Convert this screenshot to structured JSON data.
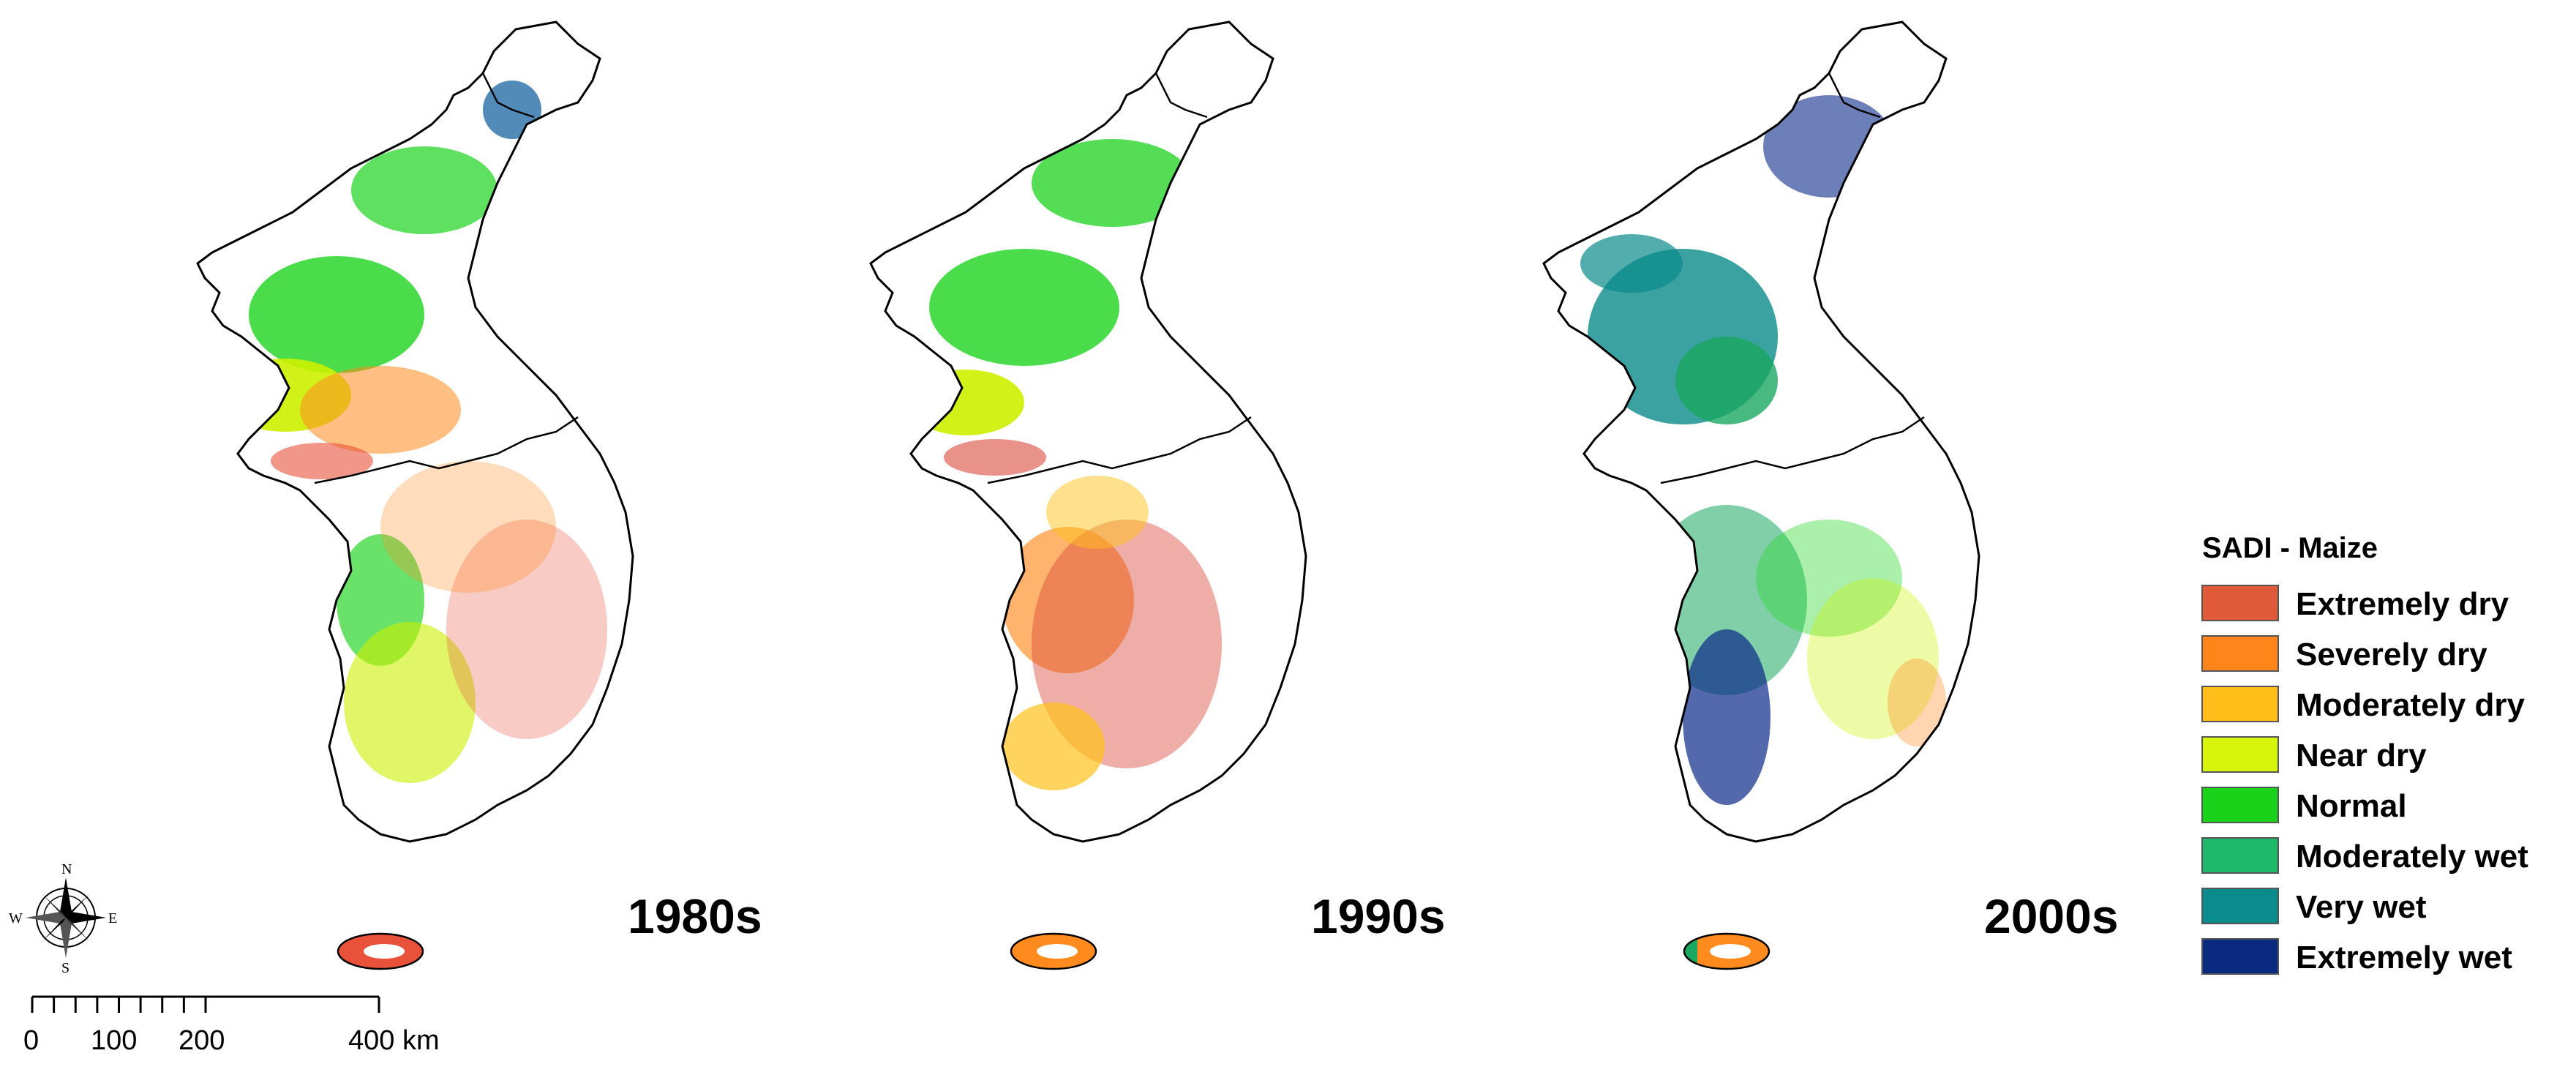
{
  "maps": [
    {
      "decade": "1980s",
      "dominant": [
        "#e8523a",
        "#ff8a1e",
        "#ccf000",
        "#2bd62b"
      ]
    },
    {
      "decade": "1990s",
      "dominant": [
        "#d94a3a",
        "#ff8a1e",
        "#ffc21a",
        "#2bd62b"
      ]
    },
    {
      "decade": "2000s",
      "dominant": [
        "#0a8a8a",
        "#1aa860",
        "#0a2a88",
        "#2bd62b"
      ]
    }
  ],
  "legend": {
    "title": "SADI - Maize",
    "items": [
      {
        "label": "Extremely dry",
        "color": "#e05a3a"
      },
      {
        "label": "Severely dry",
        "color": "#ff8419"
      },
      {
        "label": "Moderately dry",
        "color": "#ffbe1a"
      },
      {
        "label": "Near dry",
        "color": "#d6f50a"
      },
      {
        "label": "Normal",
        "color": "#19d219"
      },
      {
        "label": "Moderately wet",
        "color": "#1db86a"
      },
      {
        "label": "Very wet",
        "color": "#0b8b8b"
      },
      {
        "label": "Extremely wet",
        "color": "#0a2a80"
      }
    ]
  },
  "compass": {
    "n": "N",
    "s": "S",
    "e": "E",
    "w": "W"
  },
  "scale_bar": {
    "labels": [
      "0",
      "100",
      "200",
      "400 km"
    ]
  }
}
